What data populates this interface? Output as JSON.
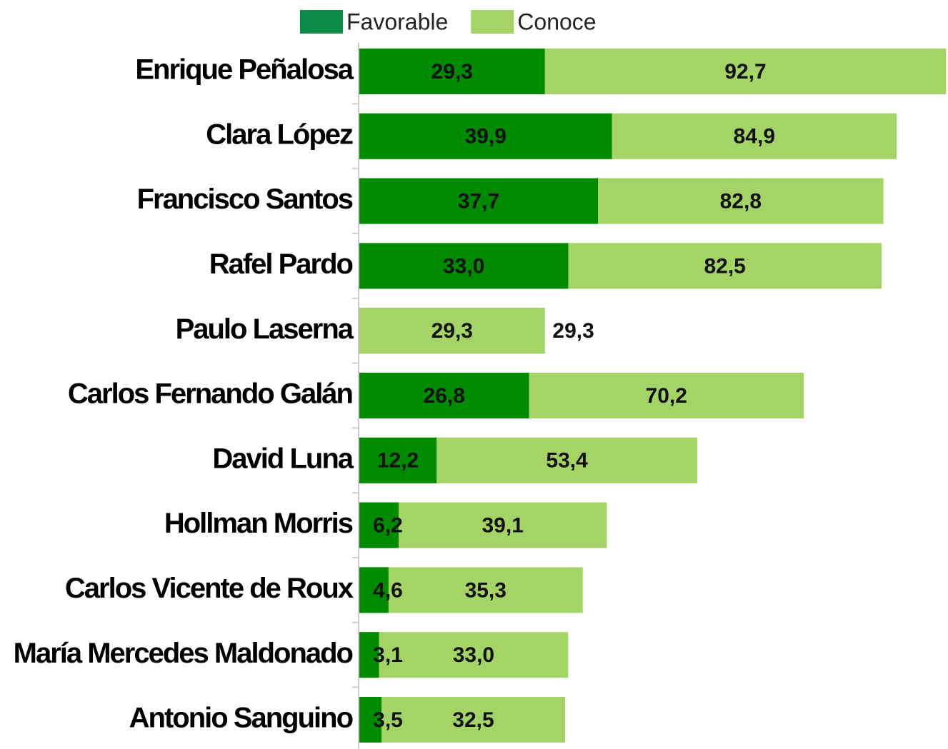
{
  "chart_data": {
    "type": "bar",
    "orientation": "horizontal",
    "overlap": true,
    "categories": [
      "Enrique Peñalosa",
      "Clara López",
      "Francisco Santos",
      "Rafel Pardo",
      "Paulo Laserna",
      "Carlos Fernando Galán",
      "David Luna",
      "Hollman Morris",
      "Carlos Vicente de Roux",
      "María Mercedes Maldonado",
      "Antonio Sanguino"
    ],
    "series": [
      {
        "name": "Favorable",
        "color": "#008a00",
        "legend_color": "#0a8a46",
        "values": [
          29.3,
          39.9,
          37.7,
          33.0,
          29.3,
          26.8,
          12.2,
          6.2,
          4.6,
          3.1,
          3.5
        ],
        "value_labels": [
          "29,3",
          "39,9",
          "37,7",
          "33,0",
          "29,3",
          "26,8",
          "12,2",
          "6,2",
          "4,6",
          "3,1",
          "3,5"
        ]
      },
      {
        "name": "Conoce",
        "color": "#a3d465",
        "values": [
          92.7,
          84.9,
          82.8,
          82.5,
          29.3,
          70.2,
          53.4,
          39.1,
          35.3,
          33.0,
          32.5
        ],
        "value_labels": [
          "92,7",
          "84,9",
          "82,8",
          "82,5",
          "29,3",
          "70,2",
          "53,4",
          "39,1",
          "35,3",
          "33,0",
          "32,5"
        ]
      }
    ],
    "xlim": [
      0,
      93
    ]
  }
}
